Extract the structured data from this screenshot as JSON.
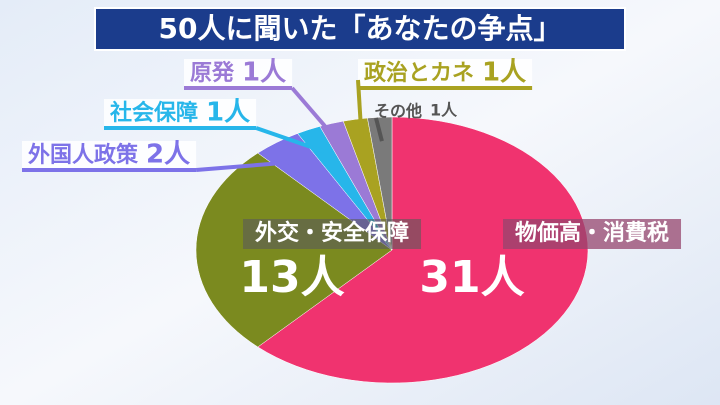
{
  "chart_data": {
    "type": "pie",
    "title": "50人に聞いた「あなたの争点」",
    "categories": [
      "物価高・消費税",
      "外交・安全保障",
      "外国人政策",
      "社会保障",
      "原発",
      "政治とカネ",
      "その他"
    ],
    "values": [
      31,
      13,
      2,
      1,
      1,
      1,
      1
    ],
    "value_labels": [
      "31人",
      "13人",
      "2人",
      "1人",
      "1人",
      "1人",
      "1人"
    ],
    "colors": [
      "#f0336f",
      "#7b8a1f",
      "#7d72e8",
      "#27b6ea",
      "#9b7ad6",
      "#a9a221",
      "#7a7a7a"
    ]
  }
}
